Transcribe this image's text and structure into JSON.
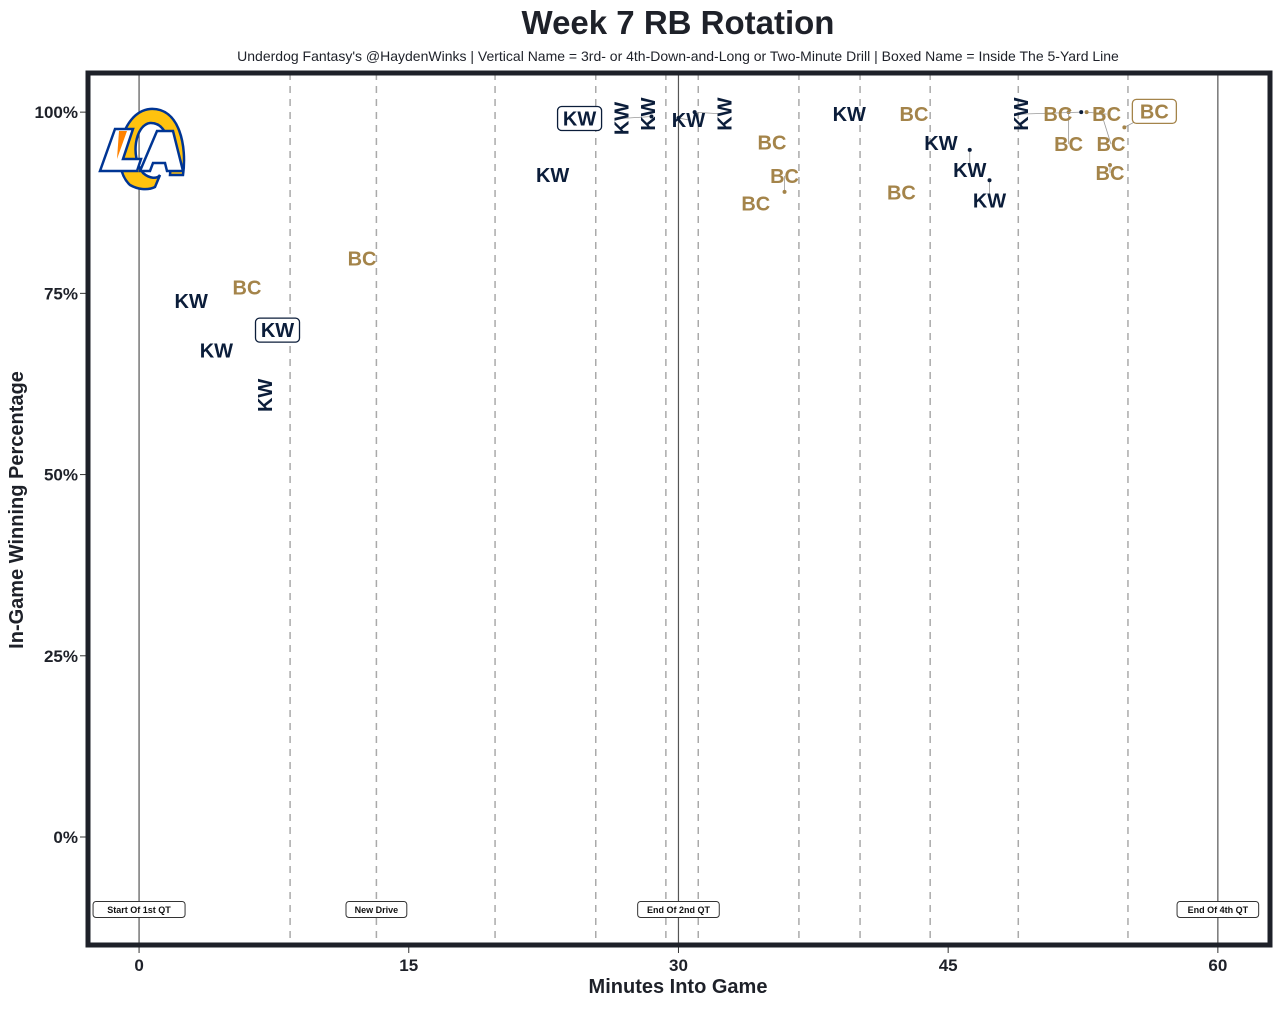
{
  "chart_data": {
    "type": "scatter",
    "title": "Week 7 RB Rotation",
    "subtitle": "Underdog Fantasy's @HaydenWinks | Vertical Name = 3rd- or 4th-Down-and-Long or Two-Minute Drill | Boxed Name = Inside The 5-Yard Line",
    "xlabel": "Minutes Into Game",
    "ylabel": "In-Game Winning Percentage",
    "xlim": [
      -2.84,
      62.9
    ],
    "ylim": [
      -14.9,
      105.4
    ],
    "xticks": [
      0,
      15,
      30,
      45,
      60
    ],
    "xtick_labels": [
      "0",
      "15",
      "30",
      "45",
      "60"
    ],
    "yticks": [
      0,
      25,
      50,
      75,
      100
    ],
    "ytick_labels": [
      "0%",
      "25%",
      "50%",
      "75%",
      "100%"
    ],
    "grid": false,
    "colors": {
      "KW": "#0b1d3a",
      "BC": "#a4844a",
      "frame": "#1e2129"
    },
    "logo": "los-angeles-rams-logo",
    "quarter_lines": [
      0,
      30,
      60
    ],
    "drive_lines": [
      8.4,
      13.2,
      19.8,
      25.4,
      29.3,
      31.1,
      36.7,
      40.1,
      44.0,
      48.9,
      55.0
    ],
    "annotations": [
      {
        "x": 0,
        "y": -10,
        "text": "Start Of 1st QT"
      },
      {
        "x": 13.2,
        "y": -10,
        "text": "New Drive"
      },
      {
        "x": 30,
        "y": -10,
        "text": "End Of 2nd QT"
      },
      {
        "x": 60,
        "y": -10,
        "text": "End Of 4th QT"
      }
    ],
    "points": [
      {
        "x": 2.9,
        "y": 74.2,
        "label": "KW",
        "vertical": false,
        "boxed": false
      },
      {
        "x": 6.0,
        "y": 76.1,
        "label": "BC",
        "vertical": false,
        "boxed": false
      },
      {
        "x": 4.3,
        "y": 67.4,
        "label": "KW",
        "vertical": false,
        "boxed": false
      },
      {
        "x": 7.7,
        "y": 70.2,
        "label": "KW",
        "vertical": false,
        "boxed": true
      },
      {
        "x": 7.0,
        "y": 61.2,
        "label": "KW",
        "vertical": true,
        "boxed": false
      },
      {
        "x": 12.4,
        "y": 80.1,
        "label": "BC",
        "vertical": false,
        "boxed": false
      },
      {
        "x": 23.0,
        "y": 91.6,
        "label": "KW",
        "vertical": false,
        "boxed": false
      },
      {
        "x": 24.5,
        "y": 99.4,
        "label": "KW",
        "vertical": false,
        "boxed": true
      },
      {
        "x": 28.3,
        "y": 100,
        "label": "KW",
        "vertical": true,
        "boxed": false
      },
      {
        "x": 28.5,
        "y": 99.4,
        "label": "KW",
        "vertical": true,
        "boxed": false
      },
      {
        "x": 30.0,
        "y": 99.2,
        "label": "KW",
        "vertical": false,
        "boxed": false
      },
      {
        "x": 30.9,
        "y": 100,
        "label": "KW",
        "vertical": true,
        "boxed": false
      },
      {
        "x": 35.2,
        "y": 96.1,
        "label": "BC",
        "vertical": false,
        "boxed": false
      },
      {
        "x": 34.3,
        "y": 87.7,
        "label": "BC",
        "vertical": false,
        "boxed": false
      },
      {
        "x": 35.9,
        "y": 89.0,
        "label": "BC",
        "vertical": false,
        "boxed": false
      },
      {
        "x": 39.5,
        "y": 100,
        "label": "KW",
        "vertical": false,
        "boxed": false
      },
      {
        "x": 43.1,
        "y": 100,
        "label": "BC",
        "vertical": false,
        "boxed": false
      },
      {
        "x": 44.6,
        "y": 96.0,
        "label": "KW",
        "vertical": false,
        "boxed": false
      },
      {
        "x": 46.2,
        "y": 94.8,
        "label": "KW",
        "vertical": false,
        "boxed": false
      },
      {
        "x": 47.3,
        "y": 90.6,
        "label": "KW",
        "vertical": false,
        "boxed": false
      },
      {
        "x": 42.4,
        "y": 89.2,
        "label": "BC",
        "vertical": false,
        "boxed": false
      },
      {
        "x": 51.1,
        "y": 100,
        "label": "BC",
        "vertical": false,
        "boxed": false
      },
      {
        "x": 51.7,
        "y": 100,
        "label": "BC",
        "vertical": false,
        "boxed": false
      },
      {
        "x": 52.7,
        "y": 100,
        "label": "BC",
        "vertical": false,
        "boxed": false
      },
      {
        "x": 53.5,
        "y": 100,
        "label": "BC",
        "vertical": false,
        "boxed": false
      },
      {
        "x": 52.4,
        "y": 100,
        "label": "KW",
        "vertical": true,
        "boxed": false
      },
      {
        "x": 54.8,
        "y": 97.9,
        "label": "BC",
        "vertical": false,
        "boxed": true
      },
      {
        "x": 54.0,
        "y": 92.7,
        "label": "BC",
        "vertical": false,
        "boxed": false
      }
    ]
  }
}
